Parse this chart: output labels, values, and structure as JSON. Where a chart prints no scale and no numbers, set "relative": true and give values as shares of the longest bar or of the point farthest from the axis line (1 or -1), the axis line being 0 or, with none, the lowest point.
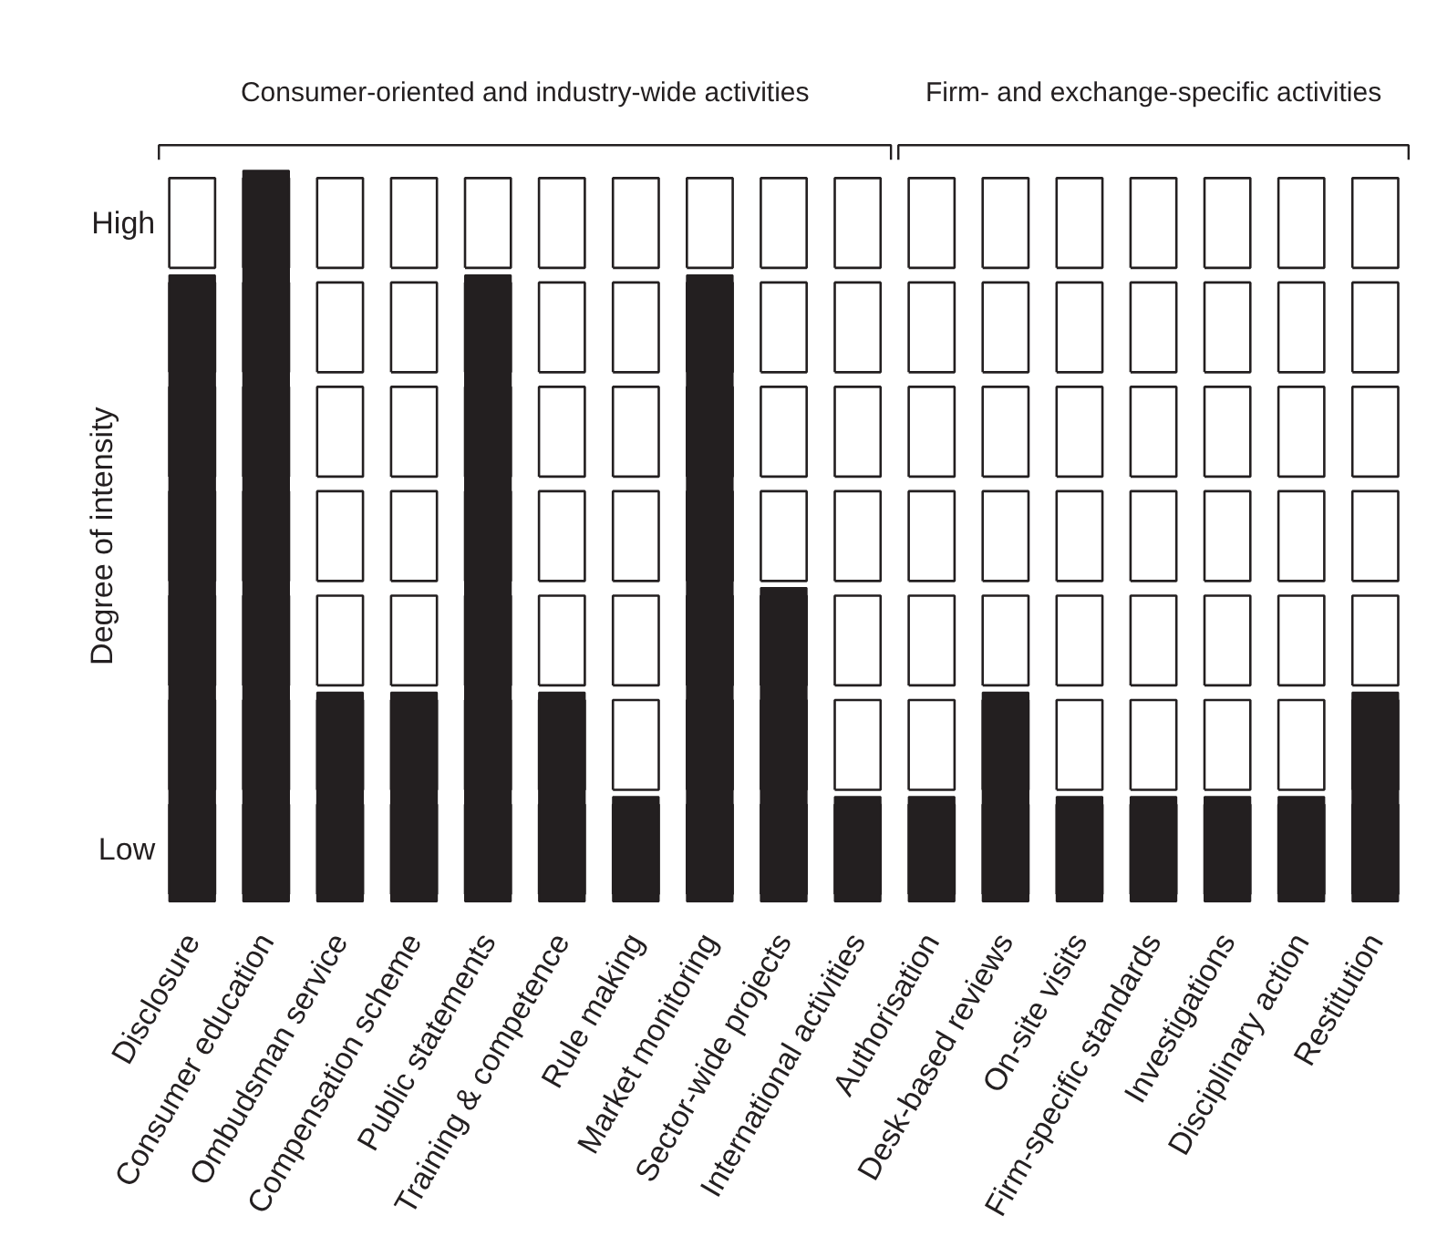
{
  "chart_data": {
    "type": "bar",
    "ylabel": "Degree of intensity",
    "relative": true,
    "categories": [
      "Disclosure",
      "Consumer education",
      "Ombudsman service",
      "Compensation scheme",
      "Public statements",
      "Training & competence",
      "Rule making",
      "Market monitoring",
      "Sector-wide projects",
      "International activities",
      "Authorisation",
      "Desk-based reviews",
      "On-site visits",
      "Firm-specific standards",
      "Investigations",
      "Disciplinary action",
      "Restitution"
    ],
    "values": [
      0.857,
      1,
      0.286,
      0.286,
      0.857,
      0.286,
      0.143,
      0.857,
      0.429,
      0.143,
      0.143,
      0.286,
      0.143,
      0.143,
      0.143,
      0.143,
      0.286
    ],
    "color": "#231f20",
    "annotations": [
      "Consumer-oriented and industry-wide activities",
      "Firm- and exchange-specific activities",
      "High",
      "Low"
    ],
    "grid": false
  }
}
